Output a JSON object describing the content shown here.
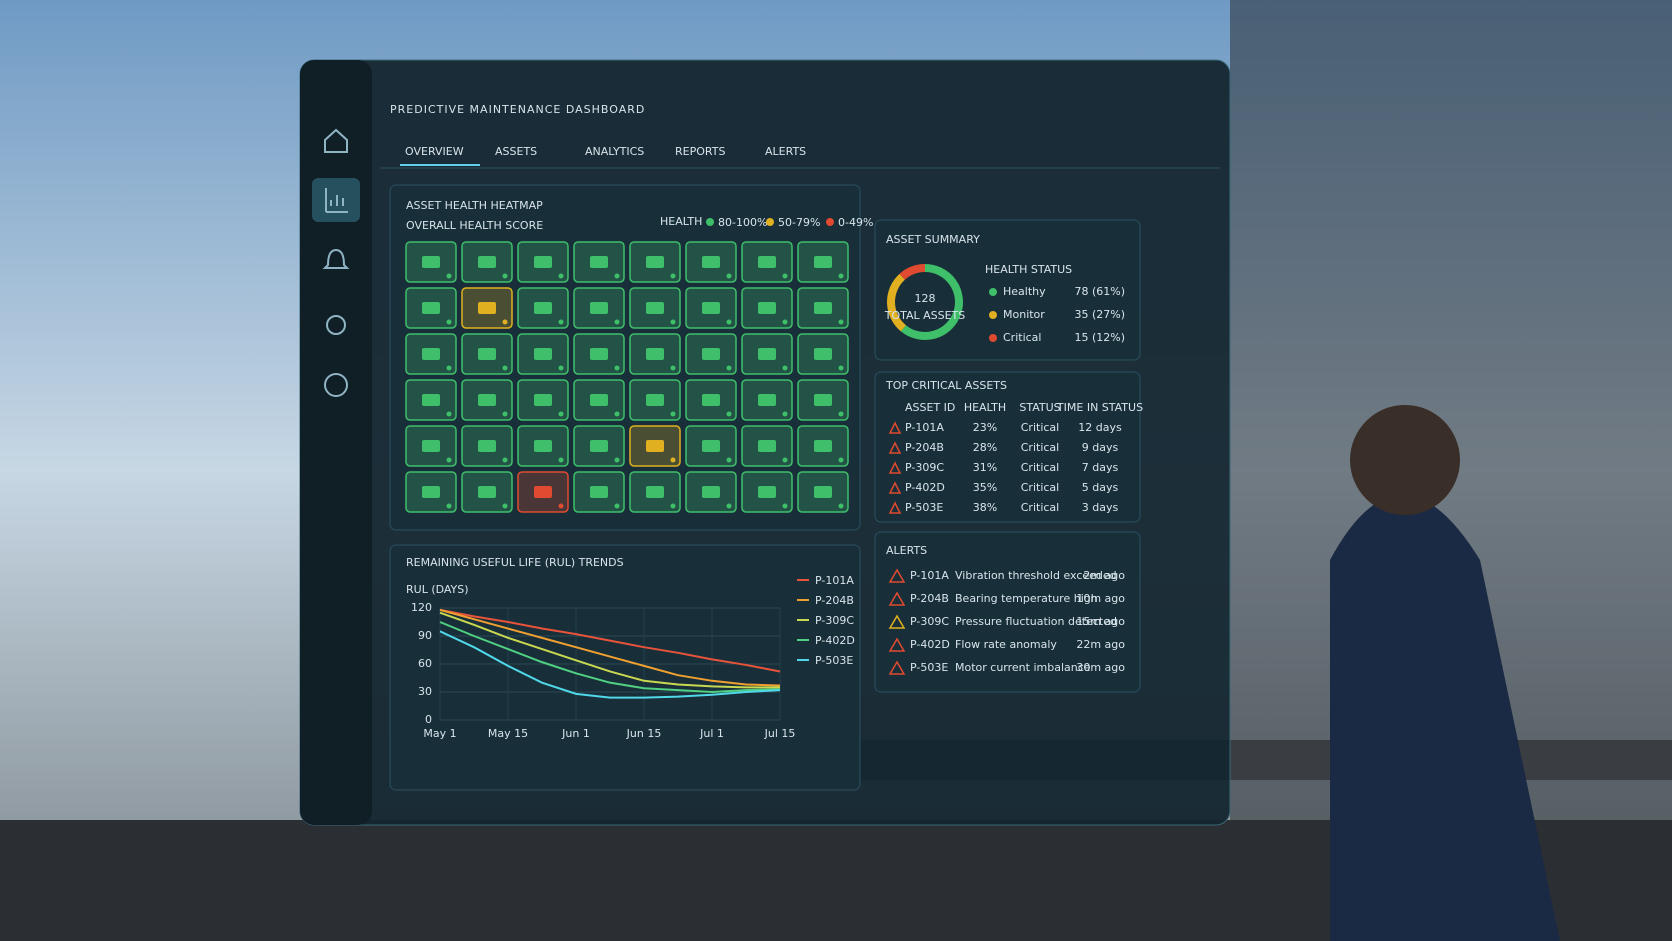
{
  "header": {
    "title": "PREDICTIVE MAINTENANCE DASHBOARD"
  },
  "nav": {
    "tabs": [
      "OVERVIEW",
      "ASSETS",
      "ANALYTICS",
      "REPORTS",
      "ALERTS"
    ]
  },
  "heatmap": {
    "title": "ASSET HEALTH HEATMAP",
    "subtitle": "OVERALL HEALTH SCORE",
    "legend_title": "HEALTH",
    "legend": [
      {
        "label": "80-100%",
        "color": "#3fbf6a"
      },
      {
        "label": "50-79%",
        "color": "#e0b020"
      },
      {
        "label": "0-49%",
        "color": "#e04a30"
      }
    ],
    "cells": [
      [
        "#3fbf6a",
        "#3fbf6a",
        "#3fbf6a",
        "#3fbf6a",
        "#3fbf6a",
        "#3fbf6a",
        "#3fbf6a",
        "#3fbf6a"
      ],
      [
        "#3fbf6a",
        "#e0b020",
        "#3fbf6a",
        "#3fbf6a",
        "#3fbf6a",
        "#3fbf6a",
        "#3fbf6a",
        "#3fbf6a"
      ],
      [
        "#3fbf6a",
        "#3fbf6a",
        "#3fbf6a",
        "#3fbf6a",
        "#3fbf6a",
        "#3fbf6a",
        "#3fbf6a",
        "#3fbf6a"
      ],
      [
        "#3fbf6a",
        "#3fbf6a",
        "#3fbf6a",
        "#3fbf6a",
        "#3fbf6a",
        "#3fbf6a",
        "#3fbf6a",
        "#3fbf6a"
      ],
      [
        "#3fbf6a",
        "#3fbf6a",
        "#3fbf6a",
        "#3fbf6a",
        "#e0b020",
        "#3fbf6a",
        "#3fbf6a",
        "#3fbf6a"
      ],
      [
        "#3fbf6a",
        "#3fbf6a",
        "#e04a30",
        "#3fbf6a",
        "#3fbf6a",
        "#3fbf6a",
        "#3fbf6a",
        "#3fbf6a"
      ]
    ]
  },
  "summary": {
    "title": "ASSET SUMMARY",
    "total": "128",
    "total_label": "TOTAL ASSETS",
    "status_title": "HEALTH STATUS",
    "rows": [
      {
        "label": "Healthy",
        "value": 78,
        "value_label": "78 (61%)",
        "color": "#3fbf6a"
      },
      {
        "label": "Monitor",
        "value": 35,
        "value_label": "35 (27%)",
        "color": "#e0b020"
      },
      {
        "label": "Critical",
        "value": 15,
        "value_label": "15 (12%)",
        "color": "#e04a30"
      }
    ]
  },
  "critical": {
    "title": "TOP CRITICAL ASSETS",
    "columns": [
      "ASSET ID",
      "HEALTH",
      "STATUS",
      "TIME IN STATUS"
    ],
    "rows": [
      [
        "P-101A",
        "23%",
        "Critical",
        "12 days"
      ],
      [
        "P-204B",
        "28%",
        "Critical",
        "9 days"
      ],
      [
        "P-309C",
        "31%",
        "Critical",
        "7 days"
      ],
      [
        "P-402D",
        "35%",
        "Critical",
        "5 days"
      ],
      [
        "P-503E",
        "38%",
        "Critical",
        "3 days"
      ]
    ]
  },
  "alerts": {
    "title": "ALERTS",
    "rows": [
      {
        "asset": "P-101A",
        "message": "Vibration threshold exceeded",
        "time": "2m ago",
        "color": "#e04a30"
      },
      {
        "asset": "P-204B",
        "message": "Bearing temperature high",
        "time": "10m ago",
        "color": "#e04a30"
      },
      {
        "asset": "P-309C",
        "message": "Pressure fluctuation detected",
        "time": "15m ago",
        "color": "#e0b020"
      },
      {
        "asset": "P-402D",
        "message": "Flow rate anomaly",
        "time": "22m ago",
        "color": "#e04a30"
      },
      {
        "asset": "P-503E",
        "message": "Motor current imbalance",
        "time": "30m ago",
        "color": "#e04a30"
      }
    ]
  },
  "chart_data": {
    "type": "line",
    "title": "REMAINING USEFUL LIFE (RUL) TRENDS",
    "y_label": "RUL (DAYS)",
    "x": [
      "May 1",
      null,
      "May 15",
      null,
      "Jun 1",
      null,
      "Jun 15",
      null,
      "Jul 1",
      null,
      "Jul 15"
    ],
    "ylim": [
      0,
      120
    ],
    "yticks": [
      0,
      30,
      60,
      90,
      120
    ],
    "grid": true,
    "series": [
      {
        "name": "P-101A",
        "color": "#e8533a",
        "values": [
          118,
          111,
          105,
          98,
          92,
          85,
          78,
          72,
          65,
          59,
          52
        ]
      },
      {
        "name": "P-204B",
        "color": "#f0a030",
        "values": [
          118,
          108,
          98,
          88,
          78,
          68,
          58,
          48,
          42,
          38,
          37
        ]
      },
      {
        "name": "P-309C",
        "color": "#c8d850",
        "values": [
          115,
          102,
          88,
          76,
          64,
          52,
          42,
          38,
          36,
          35,
          35
        ]
      },
      {
        "name": "P-402D",
        "color": "#50d080",
        "values": [
          105,
          90,
          76,
          62,
          50,
          40,
          34,
          32,
          30,
          32,
          33
        ]
      },
      {
        "name": "P-503E",
        "color": "#50d8e8",
        "values": [
          95,
          78,
          58,
          40,
          28,
          24,
          24,
          25,
          27,
          30,
          32
        ]
      }
    ]
  }
}
